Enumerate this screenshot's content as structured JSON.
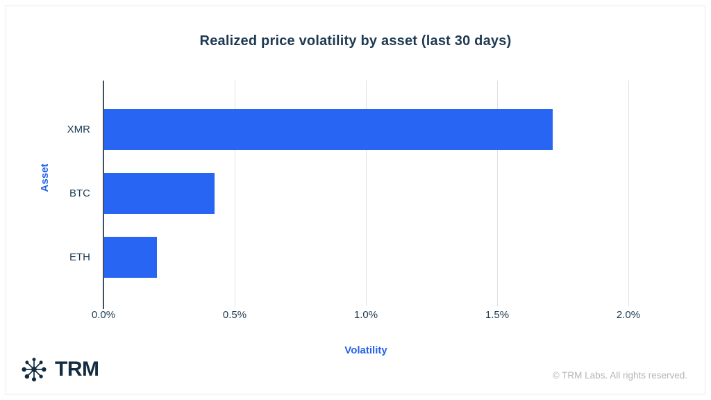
{
  "title": "Realized price volatility by asset (last 30 days)",
  "footer": {
    "brand": "TRM",
    "logo_icon": "trm-network-icon",
    "copyright": "© TRM Labs. All rights reserved."
  },
  "colors": {
    "bar": "#2765f2",
    "axis_title_text": "#2563eb",
    "dark_text": "#1d3a52",
    "gridline": "#dce1e7",
    "axis_line": "#3d4f63",
    "brand_dark": "#142c3f",
    "copyright_gray": "#b3b3b3",
    "card_border": "#e8e8e8"
  },
  "chart_data": {
    "type": "bar",
    "orientation": "horizontal",
    "title": "Realized price volatility by asset (last 30 days)",
    "categories": [
      "XMR",
      "BTC",
      "ETH"
    ],
    "values": [
      1.71,
      0.42,
      0.2
    ],
    "unit": "%",
    "xlabel": "Volatility",
    "ylabel": "Asset",
    "xlim": [
      0,
      2.0
    ],
    "xticks": [
      {
        "label": "0.0%",
        "value": 0
      },
      {
        "label": "0.5%",
        "value": 0.5
      },
      {
        "label": "1.0%",
        "value": 1.0
      },
      {
        "label": "1.5%",
        "value": 1.5
      },
      {
        "label": "2.0%",
        "value": 2.0
      }
    ],
    "grid": "vertical",
    "legend": "none"
  }
}
